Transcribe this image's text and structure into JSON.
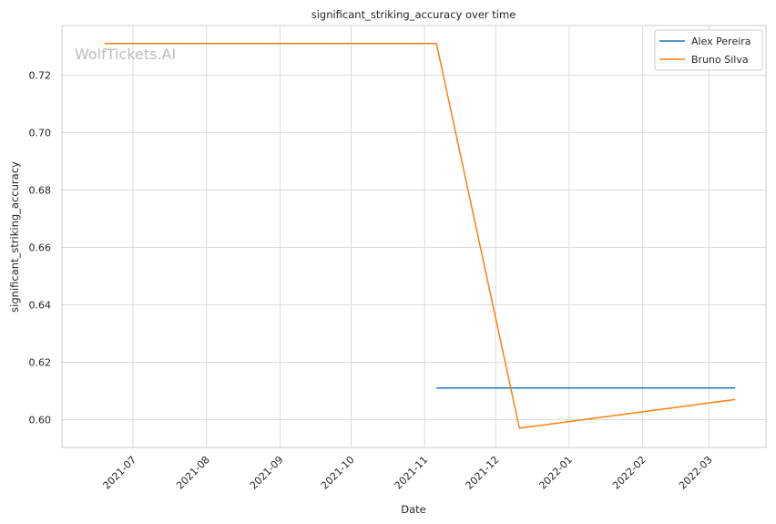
{
  "chart_data": {
    "type": "line",
    "title": "significant_striking_accuracy over time",
    "xlabel": "Date",
    "ylabel": "significant_striking_accuracy",
    "watermark": "WolfTickets.AI",
    "x_axis_type": "date",
    "xlim": [
      "2021-06-01",
      "2022-03-25"
    ],
    "ylim": [
      0.5903,
      0.7373
    ],
    "x_ticks": [
      "2021-07-01",
      "2021-08-01",
      "2021-09-01",
      "2021-10-01",
      "2021-11-01",
      "2021-12-01",
      "2022-01-01",
      "2022-02-01",
      "2022-03-01"
    ],
    "x_tick_labels": [
      "2021-07",
      "2021-08",
      "2021-09",
      "2021-10",
      "2021-11",
      "2021-12",
      "2022-01",
      "2022-02",
      "2022-03"
    ],
    "y_ticks": [
      0.6,
      0.62,
      0.64,
      0.66,
      0.68,
      0.7,
      0.72
    ],
    "y_tick_labels": [
      "0.60",
      "0.62",
      "0.64",
      "0.66",
      "0.68",
      "0.70",
      "0.72"
    ],
    "grid": true,
    "legend_position": "top-right",
    "series": [
      {
        "name": "Alex Pereira",
        "color": "#1f77b4",
        "points": [
          {
            "x": "2021-11-06",
            "y": 0.611
          },
          {
            "x": "2022-03-12",
            "y": 0.611
          }
        ]
      },
      {
        "name": "Bruno Silva",
        "color": "#ff7f0e",
        "points": [
          {
            "x": "2021-06-19",
            "y": 0.731
          },
          {
            "x": "2021-11-06",
            "y": 0.731
          },
          {
            "x": "2021-12-11",
            "y": 0.597
          },
          {
            "x": "2022-03-12",
            "y": 0.607
          }
        ]
      }
    ]
  }
}
